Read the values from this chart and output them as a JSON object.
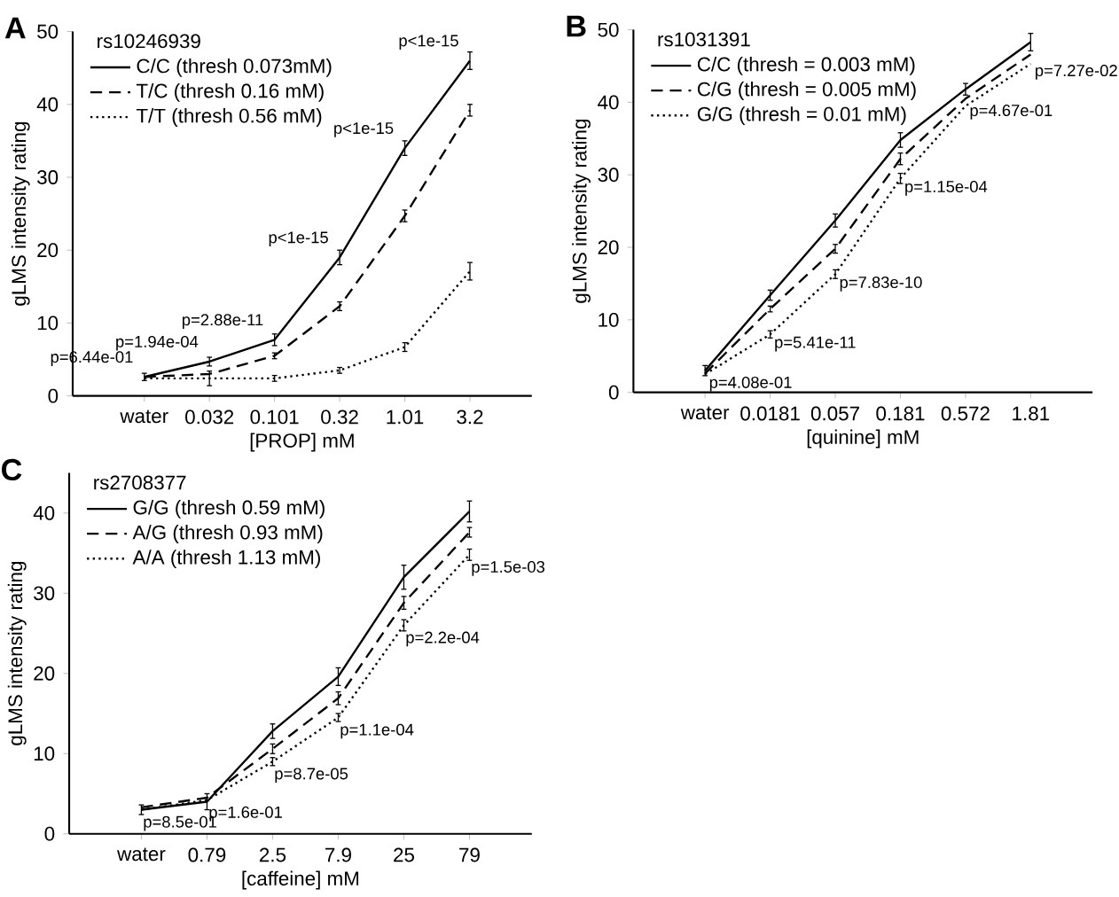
{
  "chart_data": [
    {
      "type": "line",
      "annotations": [
        "A",
        {
          "text": "p=6.44e-01",
          "x": "water",
          "y": 2.6
        },
        {
          "text": "p=1.94e-04",
          "x": "0.032",
          "y": 4.7
        },
        {
          "text": "p=2.88e-11",
          "x": "0.101",
          "y": 7.7
        },
        {
          "text": "p<1e-15",
          "x": "0.32",
          "y": 19
        },
        {
          "text": "p<1e-15",
          "x": "1.01",
          "y": 34
        },
        {
          "text": "p<1e-15",
          "x": "3.2",
          "y": 46
        }
      ],
      "xlabel": "[PROP] mM",
      "ylabel": "gLMS intensity rating",
      "legend_title": "rs10246939",
      "legend": "top left",
      "categories": [
        "water",
        "0.032",
        "0.101",
        "0.32",
        "1.01",
        "3.2"
      ],
      "ylim": [
        0,
        50
      ],
      "yticks": [
        0,
        10,
        20,
        30,
        40,
        50
      ],
      "series": [
        {
          "name": "C/C (thresh 0.073mM)",
          "color": "#000000",
          "line_style": "solid",
          "values": [
            2.6,
            4.7,
            7.7,
            19,
            34,
            46
          ],
          "errors": [
            0.5,
            0.6,
            0.8,
            1,
            1,
            1.2
          ]
        },
        {
          "name": "T/C (thresh 0.16 mM)",
          "color": "#000000",
          "line_style": "dashed",
          "values": [
            2.6,
            3,
            5.5,
            12.3,
            24.7,
            39.2
          ],
          "errors": [
            null,
            null,
            0.4,
            0.6,
            0.8,
            0.8
          ]
        },
        {
          "name": "T/T (thresh 0.56 mM)",
          "color": "#000000",
          "line_style": "dotted",
          "values": [
            2.4,
            2.4,
            2.4,
            3.5,
            6.7,
            17.1
          ],
          "errors": [
            null,
            1,
            0.4,
            0.4,
            0.6,
            1.2
          ]
        }
      ]
    },
    {
      "type": "line",
      "annotations": [
        "B",
        {
          "text": "p=4.08e-01",
          "x": "water",
          "y": 2.5
        },
        {
          "text": "p=5.41e-11",
          "x": "0.0181",
          "y": 8
        },
        {
          "text": "p=7.83e-10",
          "x": "0.057",
          "y": 16.3
        },
        {
          "text": "p=1.15e-04",
          "x": "0.181",
          "y": 29.5
        },
        {
          "text": "p=4.67e-01",
          "x": "0.572",
          "y": 40
        },
        {
          "text": "p=7.27e-02",
          "x": "1.81",
          "y": 45.5
        }
      ],
      "xlabel": "[quinine] mM",
      "ylabel": "gLMS intensity rating",
      "legend_title": "rs1031391",
      "legend": "top left",
      "categories": [
        "water",
        "0.0181",
        "0.057",
        "0.181",
        "0.572",
        "1.81"
      ],
      "ylim": [
        0,
        50
      ],
      "yticks": [
        0,
        10,
        20,
        30,
        40,
        50
      ],
      "series": [
        {
          "name": "C/C (thresh = 0.003 mM)",
          "color": "#000000",
          "line_style": "solid",
          "values": [
            3,
            13.4,
            23.7,
            34.8,
            41.8,
            48.3
          ],
          "errors": [
            0.7,
            0.7,
            0.9,
            1,
            0.8,
            1.2
          ]
        },
        {
          "name": "C/G (thresh = 0.005 mM)",
          "color": "#000000",
          "line_style": "dashed",
          "values": [
            2.6,
            11.5,
            19.8,
            32.2,
            40.5,
            46.6
          ],
          "errors": [
            null,
            0.4,
            0.6,
            0.8,
            null,
            null
          ]
        },
        {
          "name": "G/G (thresh = 0.01 mM)",
          "color": "#000000",
          "line_style": "dotted",
          "values": [
            2.5,
            8,
            16.3,
            29.5,
            39.5,
            45.3
          ],
          "errors": [
            null,
            0.5,
            0.6,
            0.7,
            null,
            null
          ]
        }
      ]
    },
    {
      "type": "line",
      "annotations": [
        "C",
        {
          "text": "p=8.5e-01",
          "x": "water",
          "y": 3
        },
        {
          "text": "p=1.6e-01",
          "x": "0.79",
          "y": 4.2
        },
        {
          "text": "p=8.7e-05",
          "x": "2.5",
          "y": 9
        },
        {
          "text": "p=1.1e-04",
          "x": "7.9",
          "y": 14.5
        },
        {
          "text": "p=2.2e-04",
          "x": "25",
          "y": 26
        },
        {
          "text": "p=1.5e-03",
          "x": "79",
          "y": 34.8
        }
      ],
      "xlabel": "[caffeine] mM",
      "ylabel": "gLMS intensity rating",
      "legend_title": "rs2708377",
      "legend": "top left",
      "categories": [
        "water",
        "0.79",
        "2.5",
        "7.9",
        "25",
        "79"
      ],
      "ylim": [
        0,
        45
      ],
      "yticks": [
        0,
        10,
        20,
        30,
        40
      ],
      "series": [
        {
          "name": "G/G (thresh 0.59 mM)",
          "color": "#000000",
          "line_style": "solid",
          "values": [
            3,
            4,
            12.8,
            19.6,
            32,
            40.2
          ],
          "errors": [
            0.6,
            1,
            0.9,
            1.1,
            1.5,
            1.3
          ]
        },
        {
          "name": "A/G (thresh 0.93 mM)",
          "color": "#000000",
          "line_style": "dashed",
          "values": [
            3.3,
            4.5,
            10.6,
            16.9,
            28.8,
            37.6
          ],
          "errors": [
            null,
            null,
            0.6,
            0.8,
            0.8,
            0.6
          ]
        },
        {
          "name": "A/A (thresh 1.13 mM)",
          "color": "#000000",
          "line_style": "dotted",
          "values": [
            3,
            4.2,
            9,
            14.5,
            26,
            34.8
          ],
          "errors": [
            null,
            null,
            0.5,
            0.5,
            0.7,
            0.7
          ]
        }
      ]
    }
  ]
}
